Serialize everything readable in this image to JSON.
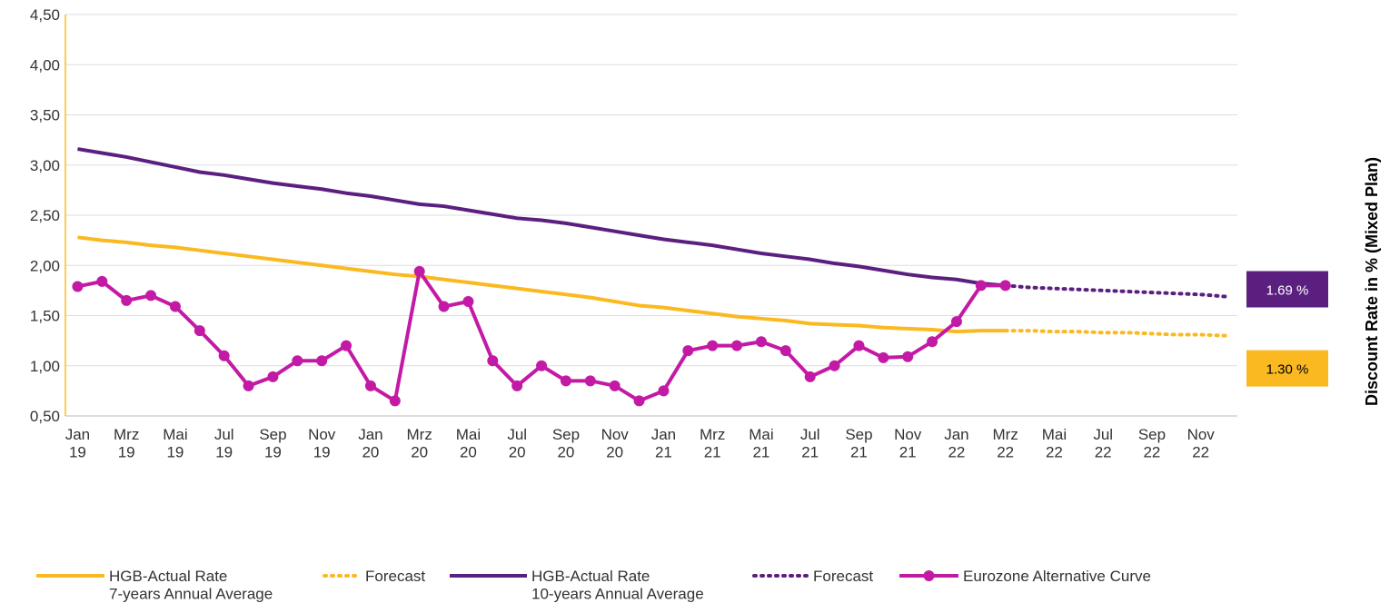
{
  "chart_data": {
    "type": "line",
    "y_label": "Discount Rate in % (Mixed Plan)",
    "categories": [
      "Jan\n19",
      null,
      "Mrz\n19",
      null,
      "Mai\n19",
      null,
      "Jul\n19",
      null,
      "Sep\n19",
      null,
      "Nov\n19",
      null,
      "Jan\n20",
      null,
      "Mrz\n20",
      null,
      "Mai\n20",
      null,
      "Jul\n20",
      null,
      "Sep\n20",
      null,
      "Nov\n20",
      null,
      "Jan\n21",
      null,
      "Mrz\n21",
      null,
      "Mai\n21",
      null,
      "Jul\n21",
      null,
      "Sep\n21",
      null,
      "Nov\n21",
      null,
      "Jan\n22",
      null,
      "Mrz\n22",
      null,
      "Mai\n22",
      null,
      "Jul\n22",
      null,
      "Sep\n22",
      null,
      "Nov\n22",
      null
    ],
    "ylim": [
      0.5,
      4.5
    ],
    "yticks": [
      {
        "value": 0.5,
        "label": "0,50"
      },
      {
        "value": 1.0,
        "label": "1,00"
      },
      {
        "value": 1.5,
        "label": "1,50"
      },
      {
        "value": 2.0,
        "label": "2,00"
      },
      {
        "value": 2.5,
        "label": "2,50"
      },
      {
        "value": 3.0,
        "label": "3,00"
      },
      {
        "value": 3.5,
        "label": "3,50"
      },
      {
        "value": 4.0,
        "label": "4,00"
      },
      {
        "value": 4.5,
        "label": "4,50"
      }
    ],
    "grid": true,
    "series": [
      {
        "name": "HGB-Actual Rate\n7-years Annual Average",
        "color": "#fbb921",
        "dash": "solid",
        "marker": false,
        "values": [
          2.28,
          2.25,
          2.23,
          2.2,
          2.18,
          2.15,
          2.12,
          2.09,
          2.06,
          2.03,
          2.0,
          1.97,
          1.94,
          1.91,
          1.89,
          1.86,
          1.83,
          1.8,
          1.77,
          1.74,
          1.71,
          1.68,
          1.64,
          1.6,
          1.58,
          1.55,
          1.52,
          1.49,
          1.47,
          1.45,
          1.42,
          1.41,
          1.4,
          1.38,
          1.37,
          1.36,
          1.34,
          1.35,
          1.35,
          null,
          null,
          null,
          null,
          null,
          null,
          null,
          null,
          null
        ]
      },
      {
        "name": "Forecast",
        "color": "#fbb921",
        "dash": "dotted",
        "marker": false,
        "values": [
          null,
          null,
          null,
          null,
          null,
          null,
          null,
          null,
          null,
          null,
          null,
          null,
          null,
          null,
          null,
          null,
          null,
          null,
          null,
          null,
          null,
          null,
          null,
          null,
          null,
          null,
          null,
          null,
          null,
          null,
          null,
          null,
          null,
          null,
          null,
          null,
          null,
          null,
          1.35,
          1.35,
          1.34,
          1.34,
          1.33,
          1.33,
          1.32,
          1.31,
          1.31,
          1.3
        ],
        "value_labels": [
          null,
          null,
          null,
          null,
          null,
          null,
          null,
          null,
          null,
          null,
          null,
          null,
          null,
          null,
          null,
          null,
          null,
          null,
          null,
          null,
          null,
          null,
          null,
          null,
          null,
          null,
          null,
          null,
          null,
          null,
          null,
          null,
          null,
          null,
          null,
          null,
          null,
          null,
          null,
          null,
          null,
          null,
          null,
          null,
          null,
          null,
          null,
          "1.30 %"
        ]
      },
      {
        "name": "HGB-Actual Rate\n10-years Annual Average",
        "color": "#5b1f80",
        "dash": "solid",
        "marker": false,
        "values": [
          3.16,
          3.12,
          3.08,
          3.03,
          2.98,
          2.93,
          2.9,
          2.86,
          2.82,
          2.79,
          2.76,
          2.72,
          2.69,
          2.65,
          2.61,
          2.59,
          2.55,
          2.51,
          2.47,
          2.45,
          2.42,
          2.38,
          2.34,
          2.3,
          2.26,
          2.23,
          2.2,
          2.16,
          2.12,
          2.09,
          2.06,
          2.02,
          1.99,
          1.95,
          1.91,
          1.88,
          1.86,
          1.82,
          1.8,
          null,
          null,
          null,
          null,
          null,
          null,
          null,
          null,
          null
        ]
      },
      {
        "name": "Forecast",
        "color": "#5b1f80",
        "dash": "dotted",
        "marker": false,
        "values": [
          null,
          null,
          null,
          null,
          null,
          null,
          null,
          null,
          null,
          null,
          null,
          null,
          null,
          null,
          null,
          null,
          null,
          null,
          null,
          null,
          null,
          null,
          null,
          null,
          null,
          null,
          null,
          null,
          null,
          null,
          null,
          null,
          null,
          null,
          null,
          null,
          null,
          null,
          1.8,
          1.78,
          1.77,
          1.76,
          1.75,
          1.74,
          1.73,
          1.72,
          1.71,
          1.69
        ],
        "value_labels": [
          null,
          null,
          null,
          null,
          null,
          null,
          null,
          null,
          null,
          null,
          null,
          null,
          null,
          null,
          null,
          null,
          null,
          null,
          null,
          null,
          null,
          null,
          null,
          null,
          null,
          null,
          null,
          null,
          null,
          null,
          null,
          null,
          null,
          null,
          null,
          null,
          null,
          null,
          null,
          null,
          null,
          null,
          null,
          null,
          null,
          null,
          null,
          "1.69 %"
        ]
      },
      {
        "name": "Eurozone Alternative Curve",
        "color": "#c31aa6",
        "dash": "solid",
        "marker": true,
        "values": [
          1.79,
          1.84,
          1.65,
          1.7,
          1.59,
          1.35,
          1.1,
          0.8,
          0.89,
          1.05,
          1.05,
          1.2,
          0.8,
          0.65,
          1.94,
          1.59,
          1.64,
          1.05,
          0.8,
          1.0,
          0.85,
          0.85,
          0.8,
          0.65,
          0.75,
          1.15,
          1.2,
          1.2,
          1.24,
          1.15,
          0.89,
          1.0,
          1.2,
          1.08,
          1.09,
          1.24,
          1.44,
          1.8,
          1.8,
          null,
          null,
          null,
          null,
          null,
          null,
          null,
          null,
          null
        ]
      }
    ]
  }
}
